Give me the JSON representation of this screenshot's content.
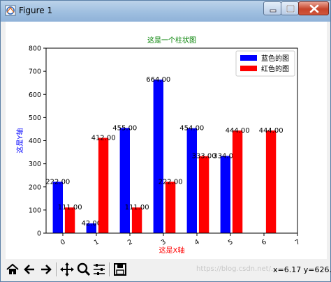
{
  "window": {
    "title": "Figure 1"
  },
  "toolbar": {
    "buttons": [
      "home-icon",
      "back-icon",
      "forward-icon",
      "pan-icon",
      "zoom-icon",
      "configure-subplots-icon",
      "save-icon"
    ],
    "coords_text": "x=6.17 y=626.",
    "watermark": "https://blog.csdn.net/..."
  },
  "colors": {
    "blue_bar": "#0000ff",
    "red_bar": "#ff0000",
    "title_color": "#008000",
    "ylabel_color": "#0000ff",
    "xlabel_color": "#ff0000"
  },
  "chart_data": {
    "type": "bar",
    "title": "这是一个柱状图",
    "xlabel": "这是X轴",
    "ylabel": "这是Y轴",
    "xlim": [
      -0.5,
      7
    ],
    "ylim": [
      0,
      800
    ],
    "yticks": [
      "0",
      "100",
      "200",
      "300",
      "400",
      "500",
      "600",
      "700",
      "800"
    ],
    "xticks": [
      "0",
      "1",
      "2",
      "3",
      "4",
      "5",
      "6",
      "7"
    ],
    "legend_position": "top-right",
    "series": [
      {
        "name": "蓝色的图",
        "color": "#0000ff",
        "x": [
          0,
          1,
          2,
          3,
          4,
          5
        ],
        "values": [
          222,
          42,
          455,
          664,
          454,
          334
        ],
        "labels": [
          "222.00",
          "42.00",
          "455.00",
          "664.00",
          "454.00",
          "334.00"
        ]
      },
      {
        "name": "红色的图",
        "color": "#ff0000",
        "x": [
          0,
          1,
          2,
          3,
          4,
          5,
          6
        ],
        "values": [
          111,
          412,
          111,
          222,
          333,
          444,
          444
        ],
        "labels": [
          "111.00",
          "412.00",
          "111.00",
          "222.00",
          "333.00",
          "444.00",
          "444.00"
        ]
      }
    ]
  }
}
